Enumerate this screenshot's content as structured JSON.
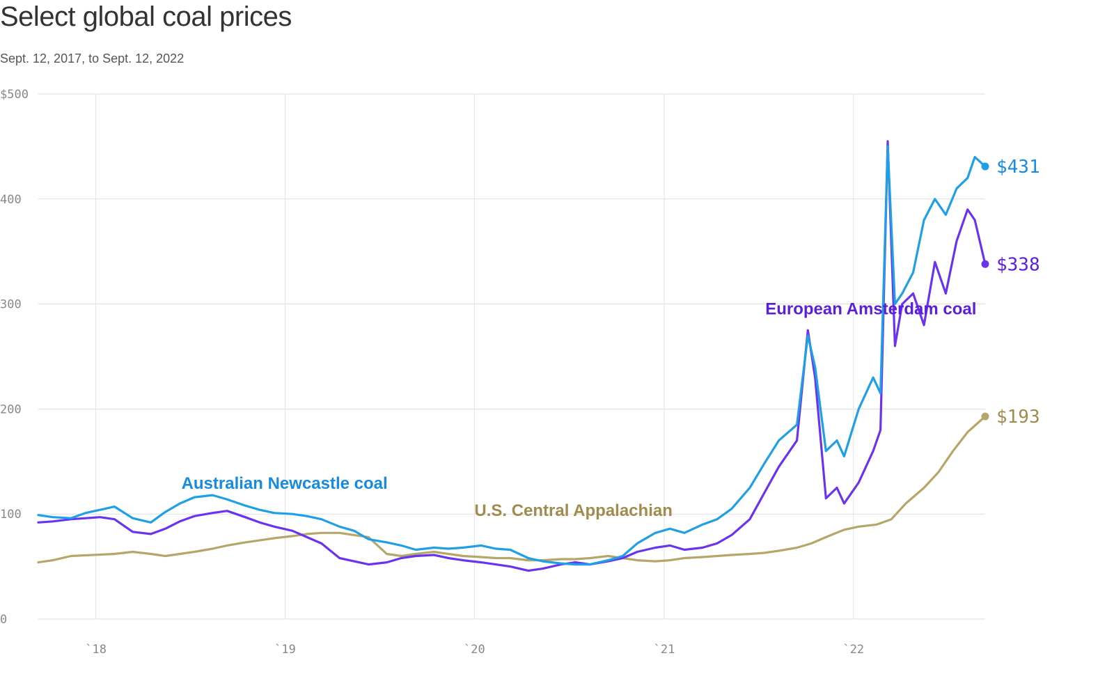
{
  "title": "Select global coal prices",
  "subtitle": "Sept. 12, 2017, to Sept. 12, 2022",
  "chart_data": {
    "type": "line",
    "title": "Select global coal prices",
    "subtitle": "Sept. 12, 2017, to Sept. 12, 2022",
    "xlabel": "",
    "ylabel": "",
    "x_range": [
      "2017-09-12",
      "2022-09-12"
    ],
    "ylim": [
      0,
      500
    ],
    "grid": true,
    "y_ticks": [
      0,
      100,
      200,
      300,
      400,
      500
    ],
    "y_tick_labels": [
      "0",
      "100",
      "200",
      "300",
      "400",
      "$500"
    ],
    "x_ticks": [
      "2018-01-01",
      "2019-01-01",
      "2020-01-01",
      "2021-01-01",
      "2022-01-01"
    ],
    "x_tick_labels": [
      "`18",
      "`19",
      "`20",
      "`21",
      "`22"
    ],
    "series": [
      {
        "name": "U.S. Central Appalachian",
        "color": "#b5a66a",
        "label_color": "#a08c4e",
        "end_label": "$193",
        "points": [
          [
            "2017-09-12",
            54
          ],
          [
            "2017-10-10",
            56
          ],
          [
            "2017-11-14",
            60
          ],
          [
            "2018-02-06",
            62
          ],
          [
            "2018-03-13",
            64
          ],
          [
            "2018-04-17",
            62
          ],
          [
            "2018-05-15",
            60
          ],
          [
            "2018-06-12",
            62
          ],
          [
            "2018-07-10",
            64
          ],
          [
            "2018-08-14",
            67
          ],
          [
            "2018-09-11",
            70
          ],
          [
            "2018-10-16",
            73
          ],
          [
            "2018-11-13",
            75
          ],
          [
            "2018-12-11",
            77
          ],
          [
            "2019-01-15",
            79
          ],
          [
            "2019-02-12",
            81
          ],
          [
            "2019-03-12",
            82
          ],
          [
            "2019-04-16",
            82
          ],
          [
            "2019-05-14",
            80
          ],
          [
            "2019-06-11",
            78
          ],
          [
            "2019-07-16",
            62
          ],
          [
            "2019-08-13",
            60
          ],
          [
            "2019-09-10",
            62
          ],
          [
            "2019-10-15",
            64
          ],
          [
            "2019-11-12",
            62
          ],
          [
            "2019-12-10",
            60
          ],
          [
            "2020-01-14",
            59
          ],
          [
            "2020-02-11",
            58
          ],
          [
            "2020-03-10",
            58
          ],
          [
            "2020-04-14",
            56
          ],
          [
            "2020-05-12",
            56
          ],
          [
            "2020-06-16",
            57
          ],
          [
            "2020-07-14",
            57
          ],
          [
            "2020-08-11",
            58
          ],
          [
            "2020-09-15",
            60
          ],
          [
            "2020-10-13",
            58
          ],
          [
            "2020-11-10",
            56
          ],
          [
            "2020-12-15",
            55
          ],
          [
            "2021-01-12",
            56
          ],
          [
            "2021-02-09",
            58
          ],
          [
            "2021-03-16",
            59
          ],
          [
            "2021-04-13",
            60
          ],
          [
            "2021-05-11",
            61
          ],
          [
            "2021-06-15",
            62
          ],
          [
            "2021-07-13",
            63
          ],
          [
            "2021-08-10",
            65
          ],
          [
            "2021-09-14",
            68
          ],
          [
            "2021-10-12",
            72
          ],
          [
            "2021-11-09",
            78
          ],
          [
            "2021-12-14",
            85
          ],
          [
            "2022-01-11",
            88
          ],
          [
            "2022-02-15",
            90
          ],
          [
            "2022-03-15",
            95
          ],
          [
            "2022-04-12",
            110
          ],
          [
            "2022-05-17",
            125
          ],
          [
            "2022-06-14",
            140
          ],
          [
            "2022-07-12",
            160
          ],
          [
            "2022-08-09",
            178
          ],
          [
            "2022-09-12",
            193
          ]
        ]
      },
      {
        "name": "European Amsterdam coal",
        "color": "#6a33f0",
        "label_color": "#5a1fdd",
        "end_label": "$338",
        "points": [
          [
            "2017-09-12",
            92
          ],
          [
            "2017-10-10",
            93
          ],
          [
            "2017-11-14",
            95
          ],
          [
            "2017-12-12",
            96
          ],
          [
            "2018-01-09",
            97
          ],
          [
            "2018-02-06",
            95
          ],
          [
            "2018-03-13",
            83
          ],
          [
            "2018-04-17",
            81
          ],
          [
            "2018-05-15",
            86
          ],
          [
            "2018-06-12",
            93
          ],
          [
            "2018-07-10",
            98
          ],
          [
            "2018-08-14",
            101
          ],
          [
            "2018-09-11",
            103
          ],
          [
            "2018-10-16",
            97
          ],
          [
            "2018-11-13",
            92
          ],
          [
            "2018-12-11",
            88
          ],
          [
            "2019-01-15",
            84
          ],
          [
            "2019-02-12",
            78
          ],
          [
            "2019-03-12",
            72
          ],
          [
            "2019-04-16",
            58
          ],
          [
            "2019-05-14",
            55
          ],
          [
            "2019-06-11",
            52
          ],
          [
            "2019-07-16",
            54
          ],
          [
            "2019-08-13",
            58
          ],
          [
            "2019-09-10",
            60
          ],
          [
            "2019-10-15",
            61
          ],
          [
            "2019-11-12",
            58
          ],
          [
            "2019-12-10",
            56
          ],
          [
            "2020-01-14",
            54
          ],
          [
            "2020-02-11",
            52
          ],
          [
            "2020-03-10",
            50
          ],
          [
            "2020-04-14",
            46
          ],
          [
            "2020-05-12",
            48
          ],
          [
            "2020-06-16",
            52
          ],
          [
            "2020-07-14",
            54
          ],
          [
            "2020-08-11",
            52
          ],
          [
            "2020-09-15",
            55
          ],
          [
            "2020-10-13",
            58
          ],
          [
            "2020-11-10",
            64
          ],
          [
            "2020-12-15",
            68
          ],
          [
            "2021-01-12",
            70
          ],
          [
            "2021-02-09",
            66
          ],
          [
            "2021-03-16",
            68
          ],
          [
            "2021-04-13",
            72
          ],
          [
            "2021-05-11",
            80
          ],
          [
            "2021-06-15",
            95
          ],
          [
            "2021-07-13",
            120
          ],
          [
            "2021-08-10",
            145
          ],
          [
            "2021-09-14",
            170
          ],
          [
            "2021-10-05",
            275
          ],
          [
            "2021-10-19",
            230
          ],
          [
            "2021-11-09",
            115
          ],
          [
            "2021-11-30",
            125
          ],
          [
            "2021-12-14",
            110
          ],
          [
            "2022-01-11",
            130
          ],
          [
            "2022-02-08",
            160
          ],
          [
            "2022-02-22",
            180
          ],
          [
            "2022-03-08",
            455
          ],
          [
            "2022-03-22",
            260
          ],
          [
            "2022-04-05",
            300
          ],
          [
            "2022-04-26",
            310
          ],
          [
            "2022-05-17",
            280
          ],
          [
            "2022-06-07",
            340
          ],
          [
            "2022-06-28",
            310
          ],
          [
            "2022-07-19",
            360
          ],
          [
            "2022-08-09",
            390
          ],
          [
            "2022-08-23",
            380
          ],
          [
            "2022-09-12",
            338
          ]
        ]
      },
      {
        "name": "Australian Newcastle coal",
        "color": "#1f9fe6",
        "label_color": "#168be0",
        "end_label": "$431",
        "points": [
          [
            "2017-09-12",
            99
          ],
          [
            "2017-10-10",
            97
          ],
          [
            "2017-11-14",
            96
          ],
          [
            "2017-12-12",
            101
          ],
          [
            "2018-01-09",
            104
          ],
          [
            "2018-02-06",
            107
          ],
          [
            "2018-03-13",
            96
          ],
          [
            "2018-04-17",
            92
          ],
          [
            "2018-05-15",
            102
          ],
          [
            "2018-06-12",
            110
          ],
          [
            "2018-07-10",
            116
          ],
          [
            "2018-08-14",
            118
          ],
          [
            "2018-09-11",
            114
          ],
          [
            "2018-10-16",
            108
          ],
          [
            "2018-11-13",
            104
          ],
          [
            "2018-12-11",
            101
          ],
          [
            "2019-01-15",
            100
          ],
          [
            "2019-02-12",
            98
          ],
          [
            "2019-03-12",
            95
          ],
          [
            "2019-04-16",
            88
          ],
          [
            "2019-05-14",
            84
          ],
          [
            "2019-06-11",
            76
          ],
          [
            "2019-07-16",
            73
          ],
          [
            "2019-08-13",
            70
          ],
          [
            "2019-09-10",
            66
          ],
          [
            "2019-10-15",
            68
          ],
          [
            "2019-11-12",
            67
          ],
          [
            "2019-12-10",
            68
          ],
          [
            "2020-01-14",
            70
          ],
          [
            "2020-02-11",
            67
          ],
          [
            "2020-03-10",
            66
          ],
          [
            "2020-04-14",
            58
          ],
          [
            "2020-05-12",
            55
          ],
          [
            "2020-06-16",
            53
          ],
          [
            "2020-07-14",
            52
          ],
          [
            "2020-08-11",
            52
          ],
          [
            "2020-09-15",
            56
          ],
          [
            "2020-10-13",
            60
          ],
          [
            "2020-11-10",
            72
          ],
          [
            "2020-12-15",
            82
          ],
          [
            "2021-01-12",
            86
          ],
          [
            "2021-02-09",
            82
          ],
          [
            "2021-03-16",
            90
          ],
          [
            "2021-04-13",
            95
          ],
          [
            "2021-05-11",
            105
          ],
          [
            "2021-06-15",
            125
          ],
          [
            "2021-07-13",
            148
          ],
          [
            "2021-08-10",
            170
          ],
          [
            "2021-09-14",
            185
          ],
          [
            "2021-10-05",
            270
          ],
          [
            "2021-10-19",
            240
          ],
          [
            "2021-11-09",
            160
          ],
          [
            "2021-11-30",
            170
          ],
          [
            "2021-12-14",
            155
          ],
          [
            "2022-01-11",
            200
          ],
          [
            "2022-02-08",
            230
          ],
          [
            "2022-02-22",
            215
          ],
          [
            "2022-03-08",
            450
          ],
          [
            "2022-03-22",
            300
          ],
          [
            "2022-04-05",
            310
          ],
          [
            "2022-04-26",
            330
          ],
          [
            "2022-05-17",
            380
          ],
          [
            "2022-06-07",
            400
          ],
          [
            "2022-06-28",
            385
          ],
          [
            "2022-07-19",
            410
          ],
          [
            "2022-08-09",
            420
          ],
          [
            "2022-08-23",
            440
          ],
          [
            "2022-09-12",
            431
          ]
        ]
      }
    ],
    "annotations": [
      {
        "text": "Australian Newcastle coal",
        "series": "Australian Newcastle coal",
        "x": "2018-06-15",
        "y": 124
      },
      {
        "text": "U.S. Central Appalachian",
        "series": "U.S. Central Appalachian",
        "x": "2020-01-01",
        "y": 98
      },
      {
        "text": "European Amsterdam coal",
        "series": "European Amsterdam coal",
        "x": "2021-07-15",
        "y": 290
      }
    ]
  }
}
